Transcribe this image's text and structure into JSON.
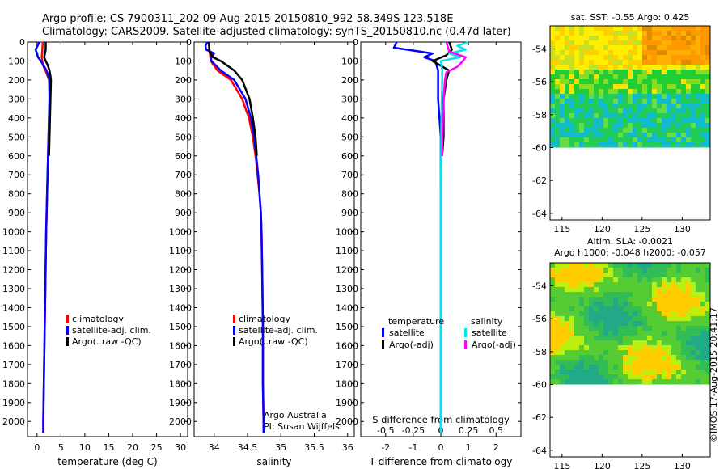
{
  "header": {
    "line1": "Argo profile: CS 7900311_202 09-Aug-2015 20150810_992 58.349S 123.518E",
    "line2": "Climatology: CARS2009. Satellite-adjusted climatology: synTS_20150810.nc (0.47d later)"
  },
  "footer_stamp": "©IMOS 17-Aug-2015 20:41:17",
  "colors": {
    "red": "#ff0000",
    "blue": "#0000ff",
    "black": "#000000",
    "cyan": "#00e5ee",
    "magenta": "#ff00ff"
  },
  "chart_data": [
    {
      "id": "temperature",
      "type": "line",
      "xlabel": "temperature (deg C)",
      "ylabel": "",
      "xlim": [
        -2,
        31.5
      ],
      "ylim": [
        2080,
        0
      ],
      "xticks": [
        0,
        5,
        10,
        15,
        20,
        25,
        30
      ],
      "yticks": [
        0,
        100,
        200,
        300,
        400,
        500,
        600,
        700,
        800,
        900,
        1000,
        1100,
        1200,
        1300,
        1400,
        1500,
        1600,
        1700,
        1800,
        1900,
        2000
      ],
      "legend": [
        "climatology",
        "satellite-adj. clim.",
        "Argo(..raw -QC)"
      ],
      "series": [
        {
          "name": "climatology",
          "color": "red",
          "depth": [
            0,
            40,
            80,
            120,
            160,
            200,
            300,
            400,
            600,
            800,
            1000,
            1500,
            2000,
            2060
          ],
          "values": [
            1.2,
            1.1,
            1.0,
            1.2,
            1.9,
            2.5,
            2.6,
            2.5,
            2.3,
            2.1,
            1.9,
            1.6,
            1.3,
            1.3
          ]
        },
        {
          "name": "satellite-adj. clim.",
          "color": "blue",
          "depth": [
            0,
            40,
            60,
            80,
            100,
            150,
            200,
            300,
            400,
            600,
            800,
            1000,
            1500,
            2000,
            2060
          ],
          "values": [
            0.5,
            -0.3,
            0.0,
            0.2,
            0.8,
            2.0,
            2.6,
            2.6,
            2.5,
            2.3,
            2.1,
            1.9,
            1.6,
            1.3,
            1.3
          ]
        },
        {
          "name": "Argo(..raw -QC)",
          "color": "black",
          "depth": [
            0,
            40,
            80,
            100,
            120,
            150,
            180,
            200,
            300,
            400,
            500,
            600
          ],
          "values": [
            1.8,
            1.8,
            1.5,
            1.8,
            2.2,
            2.6,
            2.8,
            2.9,
            2.8,
            2.7,
            2.6,
            2.5
          ]
        }
      ]
    },
    {
      "id": "salinity",
      "type": "line",
      "xlabel": "salinity",
      "ylabel": "",
      "xlim": [
        33.7,
        36.1
      ],
      "ylim": [
        2080,
        0
      ],
      "xticks": [
        34,
        34.5,
        35,
        35.5,
        36
      ],
      "xtick_labels": [
        "34",
        "34.5",
        "35",
        "35.5",
        "36"
      ],
      "legend": [
        "climatology",
        "satellite-adj. clim.",
        "Argo(..raw -QC)"
      ],
      "annotation": [
        "Argo Australia",
        "PI: Susan Wijffels"
      ],
      "series": [
        {
          "name": "climatology",
          "color": "red",
          "depth": [
            0,
            50,
            100,
            150,
            200,
            300,
            400,
            500,
            600,
            700,
            800,
            900,
            1000,
            1200,
            1500,
            1800,
            2000,
            2060
          ],
          "values": [
            33.92,
            33.93,
            33.95,
            34.05,
            34.25,
            34.42,
            34.52,
            34.58,
            34.62,
            34.65,
            34.68,
            34.7,
            34.71,
            34.72,
            34.73,
            34.73,
            34.74,
            34.74
          ]
        },
        {
          "name": "satellite-adj. clim.",
          "color": "blue",
          "depth": [
            0,
            20,
            40,
            60,
            80,
            100,
            150,
            200,
            300,
            400,
            500,
            600,
            700,
            800,
            900,
            1000,
            1200,
            1500,
            1800,
            2000,
            2060
          ],
          "values": [
            33.9,
            33.87,
            33.88,
            34.0,
            33.95,
            33.96,
            34.1,
            34.3,
            34.47,
            34.55,
            34.6,
            34.63,
            34.66,
            34.68,
            34.7,
            34.71,
            34.72,
            34.73,
            34.73,
            34.74,
            34.74
          ]
        },
        {
          "name": "Argo(..raw -QC)",
          "color": "black",
          "depth": [
            0,
            50,
            80,
            100,
            150,
            200,
            300,
            400,
            500,
            600
          ],
          "values": [
            33.92,
            33.93,
            33.98,
            34.1,
            34.3,
            34.42,
            34.53,
            34.58,
            34.62,
            34.64
          ]
        }
      ]
    },
    {
      "id": "difference",
      "type": "line",
      "xlabel": "T difference from climatology",
      "xlabel_top": "S difference from climatology",
      "xlim": [
        -2.9,
        2.9
      ],
      "ylim": [
        2080,
        0
      ],
      "xticks": [
        -2,
        -1,
        0,
        1,
        2
      ],
      "xtick_labels": [
        "-2",
        "-1",
        "0",
        "1",
        "2"
      ],
      "s_ticks": [
        -0.5,
        -0.25,
        0,
        0.25,
        0.5
      ],
      "s_tick_labels": [
        "-0.5",
        "-0.25",
        "0",
        "0.25",
        "0.5"
      ],
      "legend_groups": [
        {
          "title": "temperature",
          "items": [
            "satellite",
            "Argo(-adj)"
          ]
        },
        {
          "title": "salinity",
          "items": [
            "satellite",
            "Argo(-adj)"
          ]
        }
      ],
      "series": [
        {
          "name": "temperature satellite",
          "color": "blue",
          "depth": [
            0,
            30,
            60,
            80,
            100,
            150,
            200,
            300,
            500,
            800,
            1000,
            1500,
            2000,
            2060
          ],
          "values": [
            -1.6,
            -1.7,
            -0.3,
            -0.6,
            -0.2,
            -0.1,
            -0.1,
            -0.1,
            0.0,
            0.0,
            0.0,
            0.0,
            0.0,
            0.0
          ]
        },
        {
          "name": "temperature Argo(-adj)",
          "color": "black",
          "depth": [
            0,
            40,
            70,
            100,
            150,
            200,
            300,
            400,
            500,
            600
          ],
          "values": [
            0.3,
            0.4,
            0.2,
            -0.3,
            0.3,
            0.2,
            0.1,
            0.1,
            0.1,
            0.05
          ]
        },
        {
          "name": "salinity satellite",
          "color": "cyan",
          "depth": [
            0,
            20,
            40,
            60,
            80,
            100,
            150,
            200,
            400,
            800,
            1200,
            2000,
            2060
          ],
          "values": [
            1.0,
            0.6,
            0.9,
            0.3,
            0.7,
            0.0,
            0.05,
            0.05,
            0.02,
            0.0,
            0.0,
            0.0,
            0.0
          ]
        },
        {
          "name": "salinity Argo(-adj)",
          "color": "magenta",
          "depth": [
            0,
            50,
            80,
            100,
            130,
            160,
            200,
            300,
            400,
            500,
            600
          ],
          "values": [
            0.2,
            0.3,
            0.9,
            0.8,
            0.6,
            0.2,
            0.15,
            0.1,
            0.08,
            0.06,
            0.05
          ]
        }
      ]
    },
    {
      "id": "sst_map",
      "type": "heatmap",
      "title": "sat. SST: -0.55 Argo: 0.425",
      "xlim": [
        113.5,
        133.5
      ],
      "ylim": [
        -64.4,
        -52.6
      ],
      "xticks": [
        115,
        120,
        125,
        130
      ],
      "yticks": [
        -54,
        -56,
        -58,
        -60,
        -62,
        -64
      ],
      "data_lat_range": [
        -60,
        -52.6
      ]
    },
    {
      "id": "sla_map",
      "type": "heatmap",
      "title": "Altim. SLA: -0.0021",
      "subtitle": "Argo h1000: -0.048 h2000: -0.057",
      "xlim": [
        113.5,
        133.5
      ],
      "ylim": [
        -64.4,
        -52.6
      ],
      "xticks": [
        115,
        120,
        125,
        130
      ],
      "yticks": [
        -54,
        -56,
        -58,
        -60,
        -62,
        -64
      ],
      "data_lat_range": [
        -60,
        -52.6
      ]
    }
  ]
}
